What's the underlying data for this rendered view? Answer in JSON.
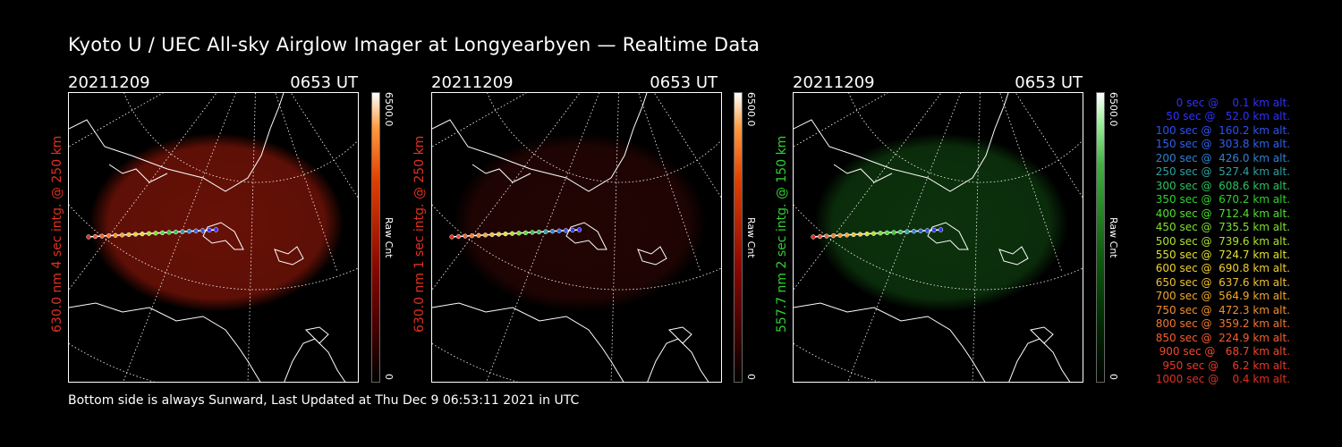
{
  "title": "Kyoto U / UEC All-sky Airglow Imager at Longyearbyen — Realtime Data",
  "footer": "Bottom side is always Sunward, Last Updated at Thu Dec  9 06:53:11 2021 in UTC",
  "panels": [
    {
      "date": "20211209",
      "time": "0653 UT",
      "side_label": "630.0 nm 4 sec intg. @ 250 km",
      "label_color": "#e03020",
      "cbar_max": "6500.0",
      "cbar_min": "0",
      "cbar_unit": "Raw Cnt",
      "glow_color": "#7a1408",
      "glow_opacity": 0.85,
      "cbar_gradient": "linear-gradient(to top, #000 0%, #3a0000 15%, #8a0800 40%, #e04000 70%, #ff9a40 88%, #ffffff 100%)"
    },
    {
      "date": "20211209",
      "time": "0653 UT",
      "side_label": "630.0 nm 1 sec intg. @ 250 km",
      "label_color": "#e03020",
      "cbar_max": "6500.0",
      "cbar_min": "0",
      "cbar_unit": "Raw Cnt",
      "glow_color": "#2a0604",
      "glow_opacity": 0.8,
      "cbar_gradient": "linear-gradient(to top, #000 0%, #3a0000 15%, #8a0800 40%, #e04000 70%, #ff9a40 88%, #ffffff 100%)"
    },
    {
      "date": "20211209",
      "time": "0653 UT",
      "side_label": "557.7 nm 2 sec intg. @ 150 km",
      "label_color": "#30d030",
      "cbar_max": "6500.0",
      "cbar_min": "0",
      "cbar_unit": "Raw Cnt",
      "glow_color": "#0e3a0e",
      "glow_opacity": 0.85,
      "cbar_gradient": "linear-gradient(to top, #000 0%, #002a00 20%, #106010 45%, #40b040 75%, #a0f0a0 90%, #ffffff 100%)"
    }
  ],
  "legend": [
    {
      "text": "   0 sec @    0.1 km alt.",
      "color": "#3030ff"
    },
    {
      "text": "  50 sec @   52.0 km alt.",
      "color": "#3030ff"
    },
    {
      "text": " 100 sec @  160.2 km alt.",
      "color": "#3050f0"
    },
    {
      "text": " 150 sec @  303.8 km alt.",
      "color": "#3060e8"
    },
    {
      "text": " 200 sec @  426.0 km alt.",
      "color": "#3080d0"
    },
    {
      "text": " 250 sec @  527.4 km alt.",
      "color": "#30a0a0"
    },
    {
      "text": " 300 sec @  608.6 km alt.",
      "color": "#30c060"
    },
    {
      "text": " 350 sec @  670.2 km alt.",
      "color": "#30d030"
    },
    {
      "text": " 400 sec @  712.4 km alt.",
      "color": "#50e030"
    },
    {
      "text": " 450 sec @  735.5 km alt.",
      "color": "#80e030"
    },
    {
      "text": " 500 sec @  739.6 km alt.",
      "color": "#b0e030"
    },
    {
      "text": " 550 sec @  724.7 km alt.",
      "color": "#e0e030"
    },
    {
      "text": " 600 sec @  690.8 km alt.",
      "color": "#f0d030"
    },
    {
      "text": " 650 sec @  637.6 km alt.",
      "color": "#f0c030"
    },
    {
      "text": " 700 sec @  564.9 km alt.",
      "color": "#f0a830"
    },
    {
      "text": " 750 sec @  472.3 km alt.",
      "color": "#f09030"
    },
    {
      "text": " 800 sec @  359.2 km alt.",
      "color": "#f07830"
    },
    {
      "text": " 850 sec @  224.9 km alt.",
      "color": "#f06030"
    },
    {
      "text": " 900 sec @   68.7 km alt.",
      "color": "#f04830"
    },
    {
      "text": " 950 sec @    6.2 km alt.",
      "color": "#e83828"
    },
    {
      "text": "1000 sec @    0.4 km alt.",
      "color": "#e03020"
    }
  ]
}
